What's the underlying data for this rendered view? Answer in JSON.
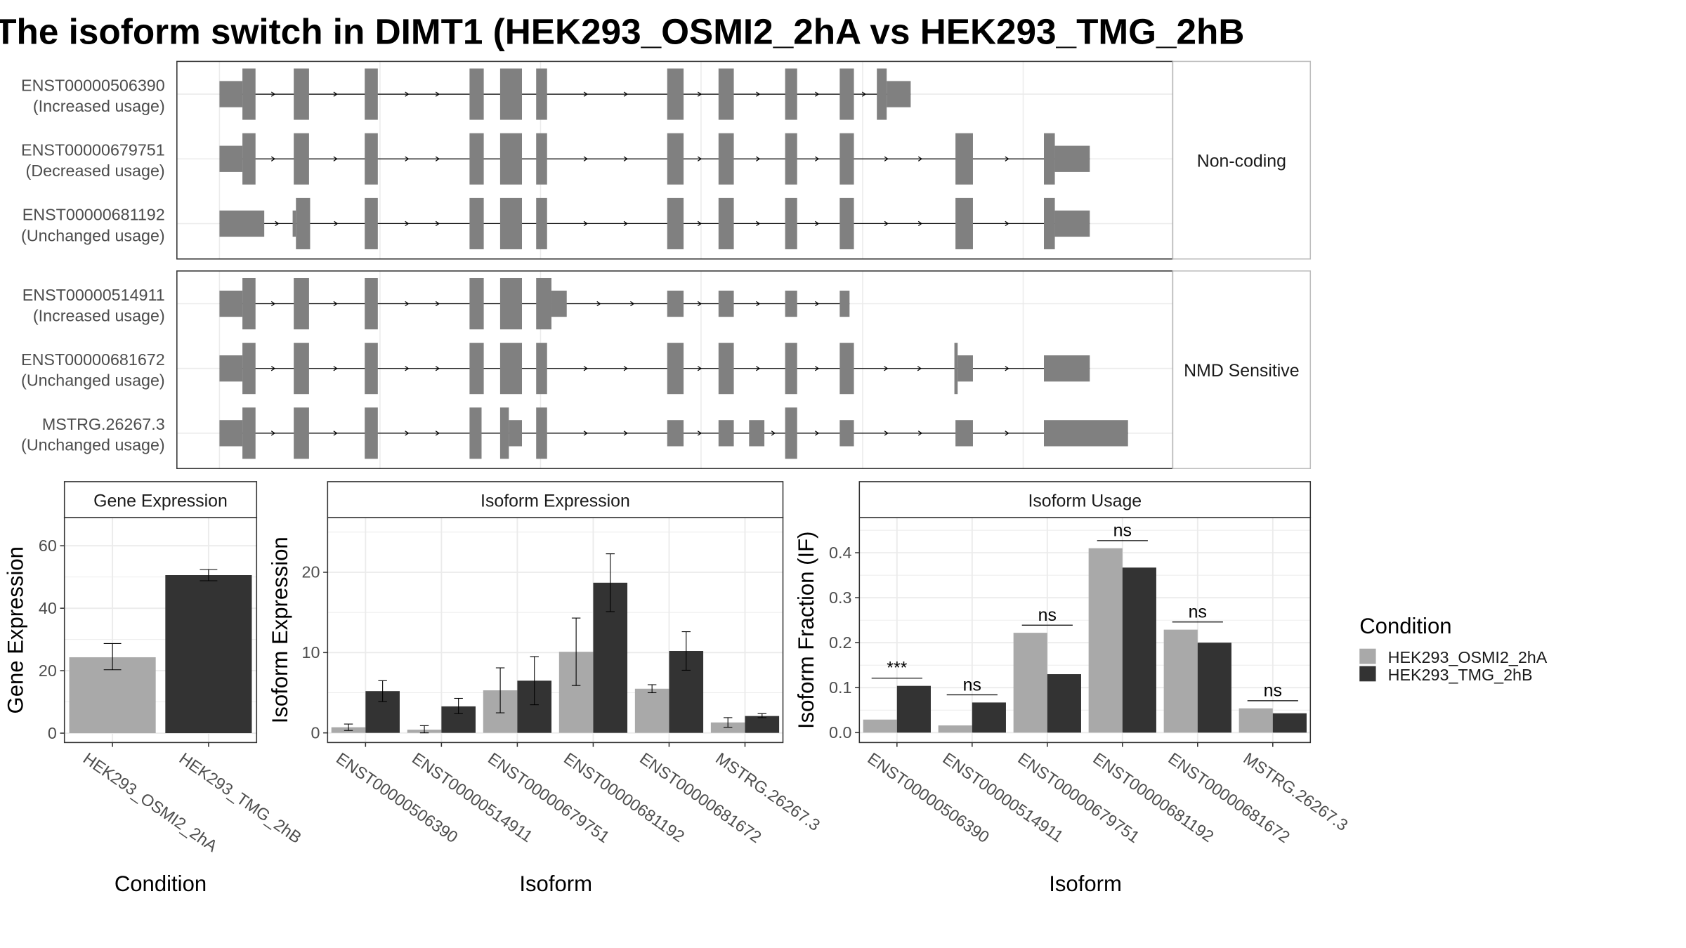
{
  "title": "The isoform switch in DIMT1 (HEK293_OSMI2_2hA vs HEK293_TMG_2hB",
  "colors": {
    "cond_a": "#a9a9a9",
    "cond_b": "#333333",
    "exon": "#808080",
    "panel_border": "#333333",
    "grid": "#ebebeb",
    "axis_text": "#4d4d4d"
  },
  "structure": {
    "groups": [
      {
        "label": "Non-coding",
        "isoforms": [
          {
            "id": "ENST00000506390",
            "usage": "(Increased usage)",
            "exons": [
              [
                201,
                222,
                "s"
              ],
              [
                222,
                234,
                "t"
              ],
              [
                269,
                283,
                "t"
              ],
              [
                334,
                346,
                "t"
              ],
              [
                430,
                443,
                "t"
              ],
              [
                458,
                478,
                "t"
              ],
              [
                491,
                501,
                "t"
              ],
              [
                611,
                626,
                "t"
              ],
              [
                658,
                672,
                "t"
              ],
              [
                719,
                730,
                "t"
              ],
              [
                769,
                782,
                "t"
              ],
              [
                803,
                812,
                "t"
              ],
              [
                812,
                834,
                "s"
              ]
            ]
          },
          {
            "id": "ENST00000679751",
            "usage": "(Decreased usage)",
            "exons": [
              [
                201,
                222,
                "s"
              ],
              [
                222,
                234,
                "t"
              ],
              [
                269,
                283,
                "t"
              ],
              [
                334,
                346,
                "t"
              ],
              [
                430,
                443,
                "t"
              ],
              [
                458,
                478,
                "t"
              ],
              [
                491,
                501,
                "t"
              ],
              [
                611,
                626,
                "t"
              ],
              [
                658,
                672,
                "t"
              ],
              [
                719,
                730,
                "t"
              ],
              [
                769,
                782,
                "t"
              ],
              [
                875,
                891,
                "t"
              ],
              [
                956,
                966,
                "t"
              ],
              [
                966,
                998,
                "s"
              ]
            ]
          },
          {
            "id": "ENST00000681192",
            "usage": "(Unchanged usage)",
            "exons": [
              [
                201,
                242,
                "s"
              ],
              [
                268,
                271,
                "s"
              ],
              [
                271,
                284,
                "t"
              ],
              [
                334,
                346,
                "t"
              ],
              [
                430,
                443,
                "t"
              ],
              [
                458,
                478,
                "t"
              ],
              [
                491,
                501,
                "t"
              ],
              [
                611,
                626,
                "t"
              ],
              [
                658,
                672,
                "t"
              ],
              [
                719,
                730,
                "t"
              ],
              [
                769,
                782,
                "t"
              ],
              [
                875,
                891,
                "t"
              ],
              [
                956,
                966,
                "t"
              ],
              [
                966,
                998,
                "s"
              ]
            ]
          }
        ]
      },
      {
        "label": "NMD Sensitive",
        "isoforms": [
          {
            "id": "ENST00000514911",
            "usage": "(Increased usage)",
            "exons": [
              [
                201,
                222,
                "s"
              ],
              [
                222,
                234,
                "t"
              ],
              [
                269,
                283,
                "t"
              ],
              [
                334,
                346,
                "t"
              ],
              [
                430,
                443,
                "t"
              ],
              [
                458,
                478,
                "t"
              ],
              [
                491,
                505,
                "t"
              ],
              [
                505,
                519,
                "s"
              ],
              [
                611,
                626,
                "s"
              ],
              [
                658,
                672,
                "s"
              ],
              [
                719,
                730,
                "s"
              ],
              [
                769,
                778,
                "s"
              ]
            ]
          },
          {
            "id": "ENST00000681672",
            "usage": "(Unchanged usage)",
            "exons": [
              [
                201,
                222,
                "s"
              ],
              [
                222,
                234,
                "t"
              ],
              [
                269,
                283,
                "t"
              ],
              [
                334,
                346,
                "t"
              ],
              [
                430,
                443,
                "t"
              ],
              [
                458,
                478,
                "t"
              ],
              [
                491,
                501,
                "t"
              ],
              [
                611,
                626,
                "t"
              ],
              [
                658,
                672,
                "t"
              ],
              [
                719,
                730,
                "t"
              ],
              [
                769,
                782,
                "t"
              ],
              [
                874,
                877,
                "t"
              ],
              [
                877,
                891,
                "s"
              ],
              [
                956,
                998,
                "s"
              ]
            ]
          },
          {
            "id": "MSTRG.26267.3",
            "usage": "(Unchanged usage)",
            "exons": [
              [
                201,
                222,
                "s"
              ],
              [
                222,
                234,
                "t"
              ],
              [
                269,
                283,
                "t"
              ],
              [
                334,
                346,
                "t"
              ],
              [
                430,
                441,
                "t"
              ],
              [
                458,
                466,
                "t"
              ],
              [
                466,
                478,
                "s"
              ],
              [
                491,
                501,
                "t"
              ],
              [
                611,
                626,
                "s"
              ],
              [
                658,
                672,
                "s"
              ],
              [
                686,
                700,
                "s"
              ],
              [
                719,
                730,
                "t"
              ],
              [
                769,
                782,
                "s"
              ],
              [
                875,
                891,
                "s"
              ],
              [
                956,
                1033,
                "s"
              ]
            ]
          }
        ]
      }
    ]
  },
  "chart_data": [
    {
      "type": "bar",
      "title": "Gene Expression",
      "xlabel": "Condition",
      "ylabel": "Gene Expression",
      "categories": [
        "HEK293_OSMI2_2hA",
        "HEK293_TMG_2hB"
      ],
      "values": [
        24.3,
        50.6
      ],
      "error_low": [
        20.3,
        48.8
      ],
      "error_high": [
        28.7,
        52.4
      ],
      "ylim": [
        -3,
        69
      ],
      "yticks": [
        0,
        20,
        40,
        60
      ],
      "grid": true
    },
    {
      "type": "bar",
      "title": "Isoform Expression",
      "xlabel": "Isoform",
      "ylabel": "Isoform Expression",
      "categories": [
        "ENST00000506390",
        "ENST00000514911",
        "ENST00000679751",
        "ENST00000681192",
        "ENST00000681672",
        "MSTRG.26267.3"
      ],
      "series": [
        {
          "values": [
            0.7,
            0.4,
            5.3,
            10.1,
            5.5,
            1.3
          ],
          "error_low": [
            0.3,
            0.0,
            2.5,
            5.9,
            5.0,
            0.7
          ],
          "error_high": [
            1.1,
            0.9,
            8.1,
            14.3,
            6.0,
            1.9
          ]
        },
        {
          "values": [
            5.2,
            3.3,
            6.5,
            18.7,
            10.2,
            2.1
          ],
          "error_low": [
            3.9,
            2.4,
            3.5,
            15.1,
            7.8,
            1.9
          ],
          "error_high": [
            6.5,
            4.3,
            9.5,
            22.3,
            12.6,
            2.4
          ]
        }
      ],
      "ylim": [
        -1.2,
        26.8
      ],
      "yticks": [
        0,
        10,
        20
      ],
      "grid": true
    },
    {
      "type": "bar",
      "title": "Isoform Usage",
      "xlabel": "Isoform",
      "ylabel": "Isoform Fraction (IF)",
      "categories": [
        "ENST00000506390",
        "ENST00000514911",
        "ENST00000679751",
        "ENST00000681192",
        "ENST00000681672",
        "MSTRG.26267.3"
      ],
      "series": [
        {
          "values": [
            0.029,
            0.016,
            0.222,
            0.41,
            0.229,
            0.054
          ]
        },
        {
          "values": [
            0.104,
            0.067,
            0.13,
            0.367,
            0.2,
            0.043
          ]
        }
      ],
      "significance": [
        "***",
        "ns",
        "ns",
        "ns",
        "ns",
        "ns"
      ],
      "ylim": [
        -0.022,
        0.478
      ],
      "yticks": [
        0.0,
        0.1,
        0.2,
        0.3,
        0.4
      ],
      "ytick_labels": [
        "0.0",
        "0.1",
        "0.2",
        "0.3",
        "0.4"
      ],
      "grid": true
    }
  ],
  "legend": {
    "title": "Condition",
    "entries": [
      "HEK293_OSMI2_2hA",
      "HEK293_TMG_2hB"
    ],
    "position": "right"
  }
}
